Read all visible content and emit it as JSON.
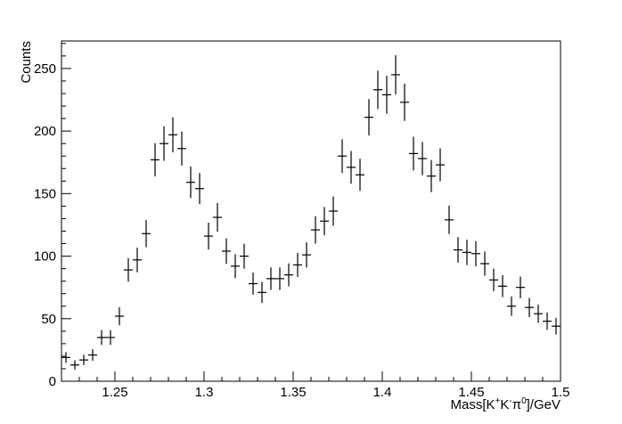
{
  "chart_data": {
    "type": "scatter",
    "style": "histogram-with-error-bars",
    "title": "",
    "xlabel": {
      "base": "Mass[K",
      "sup1": "+",
      "mid1": "K",
      "sup2": "-",
      "mid2": "π",
      "sup3": "0",
      "tail": "]/GeV"
    },
    "ylabel": "Counts",
    "xlim": [
      1.22,
      1.5
    ],
    "ylim": [
      0,
      272
    ],
    "x_ticks": [
      1.25,
      1.3,
      1.35,
      1.4,
      1.45,
      1.5
    ],
    "x_tick_labels": [
      "1.25",
      "1.3",
      "1.35",
      "1.4",
      "1.45",
      "1.5"
    ],
    "y_ticks": [
      0,
      50,
      100,
      150,
      200,
      250
    ],
    "y_tick_labels": [
      "0",
      "50",
      "100",
      "150",
      "200",
      "250"
    ],
    "grid": false,
    "bin_width": 0.005,
    "x": [
      1.2225,
      1.2275,
      1.2325,
      1.2375,
      1.2425,
      1.2475,
      1.2525,
      1.2575,
      1.2625,
      1.2675,
      1.2725,
      1.2775,
      1.2825,
      1.2875,
      1.2925,
      1.2975,
      1.3025,
      1.3075,
      1.3125,
      1.3175,
      1.3225,
      1.3275,
      1.3325,
      1.3375,
      1.3425,
      1.3475,
      1.3525,
      1.3575,
      1.3625,
      1.3675,
      1.3725,
      1.3775,
      1.3825,
      1.3875,
      1.3925,
      1.3975,
      1.4025,
      1.4075,
      1.4125,
      1.4175,
      1.4225,
      1.4275,
      1.4325,
      1.4375,
      1.4425,
      1.4475,
      1.4525,
      1.4575,
      1.4625,
      1.4675,
      1.4725,
      1.4775,
      1.4825,
      1.4875,
      1.4925,
      1.4975
    ],
    "values": [
      19,
      13,
      17,
      21,
      35,
      35,
      52,
      89,
      97,
      118,
      177,
      190,
      197,
      186,
      159,
      154,
      116,
      131,
      104,
      92,
      100,
      78,
      71,
      82,
      82,
      85,
      93,
      101,
      121,
      128,
      136,
      180,
      171,
      165,
      211,
      233,
      229,
      245,
      223,
      182,
      178,
      164,
      173,
      129,
      105,
      103,
      102,
      94,
      81,
      76,
      60,
      75,
      59,
      54,
      48,
      44
    ]
  }
}
